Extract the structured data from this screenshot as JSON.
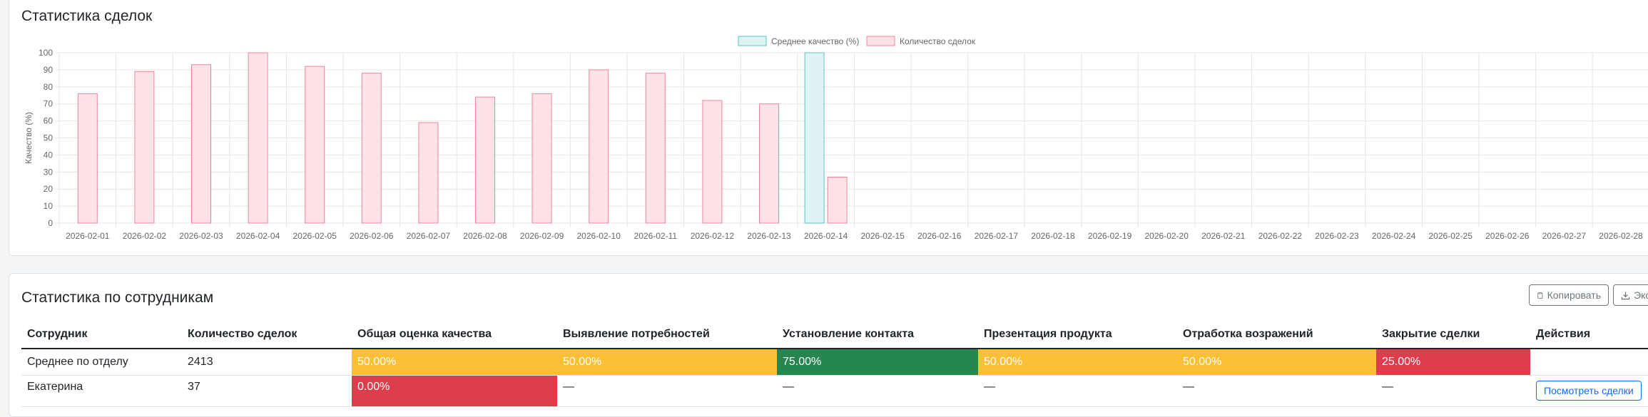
{
  "chart_section": {
    "title": "Статистика сделок"
  },
  "chart_data": {
    "type": "bar",
    "categories": [
      "2026-02-01",
      "2026-02-02",
      "2026-02-03",
      "2026-02-04",
      "2026-02-05",
      "2026-02-06",
      "2026-02-07",
      "2026-02-08",
      "2026-02-09",
      "2026-02-10",
      "2026-02-11",
      "2026-02-12",
      "2026-02-13",
      "2026-02-14",
      "2026-02-15",
      "2026-02-16",
      "2026-02-17",
      "2026-02-18",
      "2026-02-19",
      "2026-02-20",
      "2026-02-21",
      "2026-02-22",
      "2026-02-23",
      "2026-02-24",
      "2026-02-25",
      "2026-02-26",
      "2026-02-27",
      "2026-02-28"
    ],
    "series": [
      {
        "name": "Среднее качество (%)",
        "color_fill": "#dff3f4",
        "color_stroke": "#5cc2c6",
        "values": [
          null,
          null,
          null,
          null,
          null,
          null,
          null,
          null,
          null,
          null,
          null,
          null,
          null,
          100,
          null,
          null,
          null,
          null,
          null,
          null,
          null,
          null,
          null,
          null,
          null,
          null,
          null,
          null
        ]
      },
      {
        "name": "Количество сделок",
        "color_fill": "#fde2e8",
        "color_stroke": "#f0849c",
        "values": [
          76,
          89,
          93,
          100,
          92,
          88,
          59,
          74,
          76,
          90,
          88,
          72,
          70,
          27,
          null,
          null,
          null,
          null,
          null,
          null,
          null,
          null,
          null,
          null,
          null,
          null,
          null,
          null
        ]
      }
    ],
    "ylabel": "Качество (%)",
    "ylim": [
      0,
      100
    ],
    "yticks": [
      0,
      10,
      20,
      30,
      40,
      50,
      60,
      70,
      80,
      90,
      100
    ],
    "grid": true,
    "legend": "top-center"
  },
  "employee_section": {
    "title": "Статистика по сотрудникам",
    "copy_label": "Копировать",
    "export_label": "Экспорт",
    "columns": [
      "Сотрудник",
      "Количество сделок",
      "Общая оценка качества",
      "Выявление потребностей",
      "Установление контакта",
      "Презентация продукта",
      "Отработка возражений",
      "Закрытие сделки",
      "Действия"
    ],
    "rows": [
      {
        "name": "Среднее по отделу",
        "deals": "2413",
        "quality": "50.00%",
        "needs": "50.00%",
        "contact": "75.00%",
        "presentation": "50.00%",
        "objections": "50.00%",
        "closing": "25.00%",
        "action": ""
      },
      {
        "name": "Екатерина",
        "deals": "37",
        "quality": "0.00%",
        "needs": "—",
        "contact": "—",
        "presentation": "—",
        "objections": "—",
        "closing": "—",
        "action": "Посмотреть сделки"
      }
    ],
    "status_colors": {
      "warn": "#fbbf36",
      "ok": "#258650",
      "bad": "#dc3e4c"
    }
  }
}
